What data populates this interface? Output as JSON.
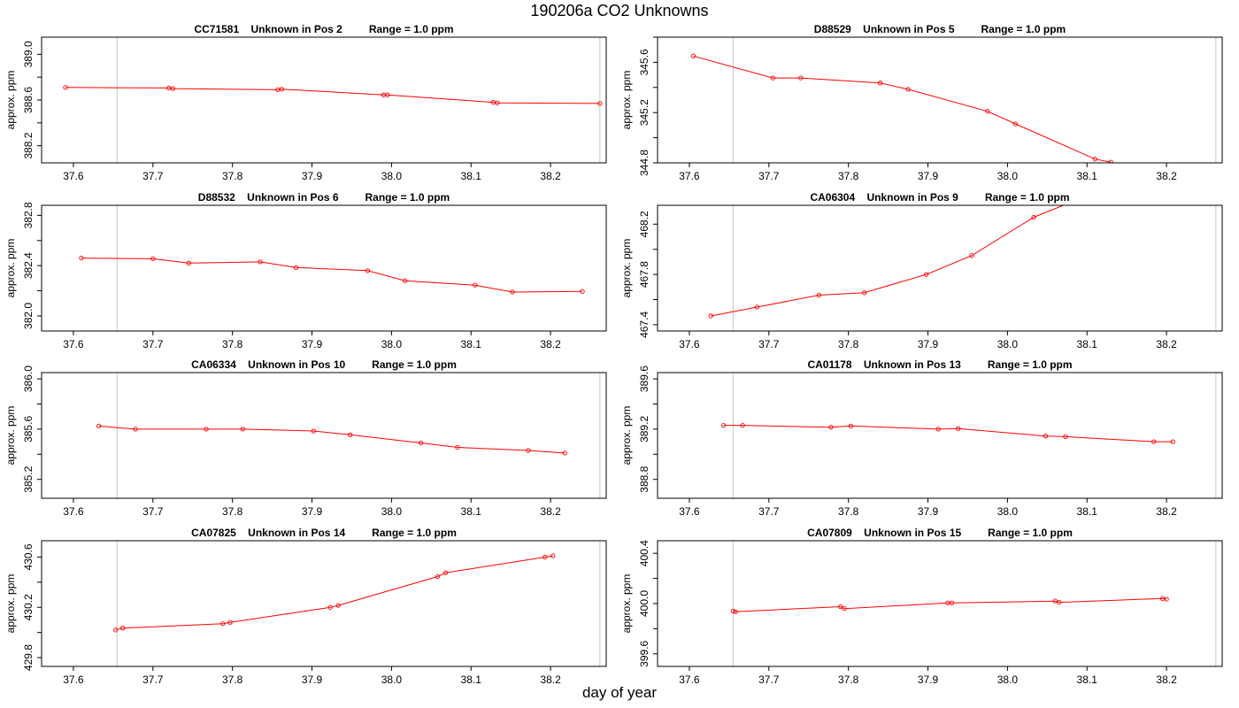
{
  "title": "190206a  CO2 Unknowns",
  "xlabel": "day of year",
  "colors": {
    "series": "#ff0000",
    "marker": "#ff0000",
    "vline": "#c8c8c8",
    "frame": "#000000"
  },
  "chart_data": [
    {
      "type": "line",
      "title": "CC71581    Unknown in Pos 2         Range = 1.0 ppm",
      "xlabel": "",
      "ylabel": "approx. ppm",
      "xlim": [
        37.56,
        38.27
      ],
      "ylim": [
        388.05,
        389.15
      ],
      "xticks": [
        "37.6",
        "37.7",
        "37.8",
        "37.9",
        "38.0",
        "38.1",
        "38.2"
      ],
      "yticks": [
        "388.2",
        "388.6",
        "389.0"
      ],
      "vlines": [
        37.655,
        38.262
      ],
      "x": [
        37.59,
        37.72,
        37.725,
        37.857,
        37.862,
        37.99,
        37.995,
        38.128,
        38.133,
        38.262
      ],
      "y": [
        388.71,
        388.705,
        388.7,
        388.69,
        388.695,
        388.645,
        388.645,
        388.58,
        388.575,
        388.57
      ]
    },
    {
      "type": "line",
      "title": "D88529    Unknown in Pos 5         Range = 1.0 ppm",
      "xlabel": "",
      "ylabel": "approx. ppm",
      "xlim": [
        37.56,
        38.27
      ],
      "ylim": [
        344.8,
        345.8
      ],
      "xticks": [
        "37.6",
        "37.7",
        "37.8",
        "37.9",
        "38.0",
        "38.1",
        "38.2"
      ],
      "yticks": [
        "344.8",
        "345.2",
        "345.6"
      ],
      "vlines": [
        37.655,
        38.262
      ],
      "x": [
        37.605,
        37.705,
        37.74,
        37.84,
        37.875,
        37.975,
        38.01,
        38.11,
        38.13
      ],
      "y": [
        345.65,
        345.475,
        345.475,
        345.435,
        345.385,
        345.21,
        345.11,
        344.83,
        344.805
      ]
    },
    {
      "type": "line",
      "title": "D88532    Unknown in Pos 6         Range = 1.0 ppm",
      "xlabel": "",
      "ylabel": "approx. ppm",
      "xlim": [
        37.56,
        38.27
      ],
      "ylim": [
        381.88,
        382.88
      ],
      "xticks": [
        "37.6",
        "37.7",
        "37.8",
        "37.9",
        "38.0",
        "38.1",
        "38.2"
      ],
      "yticks": [
        "382.0",
        "382.4",
        "382.8"
      ],
      "vlines": [
        37.655
      ],
      "x": [
        37.61,
        37.7,
        37.745,
        37.835,
        37.88,
        37.97,
        38.017,
        38.105,
        38.152,
        38.24
      ],
      "y": [
        382.46,
        382.455,
        382.42,
        382.43,
        382.385,
        382.36,
        382.28,
        382.245,
        382.19,
        382.195
      ]
    },
    {
      "type": "line",
      "title": "CA06304    Unknown in Pos 9         Range = 1.0 ppm",
      "xlabel": "",
      "ylabel": "approx. ppm",
      "xlim": [
        37.56,
        38.27
      ],
      "ylim": [
        467.35,
        468.35
      ],
      "xticks": [
        "37.6",
        "37.7",
        "37.8",
        "37.9",
        "38.0",
        "38.1",
        "38.2"
      ],
      "yticks": [
        "467.4",
        "467.8",
        "468.2"
      ],
      "vlines": [
        37.655,
        38.262
      ],
      "x": [
        37.627,
        37.685,
        37.763,
        37.82,
        37.898,
        37.955,
        38.033,
        38.09
      ],
      "y": [
        467.47,
        467.54,
        467.635,
        467.655,
        467.8,
        467.95,
        468.255,
        468.4
      ]
    },
    {
      "type": "line",
      "title": "CA06334    Unknown in Pos 10         Range = 1.0 ppm",
      "xlabel": "",
      "ylabel": "approx. ppm",
      "xlim": [
        37.56,
        38.27
      ],
      "ylim": [
        385.05,
        386.05
      ],
      "xticks": [
        "37.6",
        "37.7",
        "37.8",
        "37.9",
        "38.0",
        "38.1",
        "38.2"
      ],
      "yticks": [
        "385.2",
        "385.6",
        "386.0"
      ],
      "vlines": [
        37.655,
        38.262
      ],
      "x": [
        37.632,
        37.678,
        37.767,
        37.813,
        37.902,
        37.948,
        38.037,
        38.083,
        38.172,
        38.218
      ],
      "y": [
        385.625,
        385.6,
        385.6,
        385.6,
        385.585,
        385.555,
        385.49,
        385.455,
        385.43,
        385.41
      ]
    },
    {
      "type": "line",
      "title": "CA01178    Unknown in Pos 13         Range = 1.0 ppm",
      "xlabel": "",
      "ylabel": "approx. ppm",
      "xlim": [
        37.56,
        38.27
      ],
      "ylim": [
        388.65,
        389.65
      ],
      "xticks": [
        "37.6",
        "37.7",
        "37.8",
        "37.9",
        "38.0",
        "38.1",
        "38.2"
      ],
      "yticks": [
        "388.8",
        "389.2",
        "389.6"
      ],
      "vlines": [
        37.655,
        38.262
      ],
      "x": [
        37.643,
        37.667,
        37.778,
        37.803,
        37.913,
        37.938,
        38.048,
        38.073,
        38.184,
        38.208
      ],
      "y": [
        389.23,
        389.23,
        389.215,
        389.225,
        389.2,
        389.205,
        389.145,
        389.14,
        389.1,
        389.1
      ]
    },
    {
      "type": "line",
      "title": "CA07825    Unknown in Pos 14         Range = 1.0 ppm",
      "xlabel": "",
      "ylabel": "approx. ppm",
      "xlim": [
        37.56,
        38.27
      ],
      "ylim": [
        429.73,
        430.73
      ],
      "xticks": [
        "37.6",
        "37.7",
        "37.8",
        "37.9",
        "38.0",
        "38.1",
        "38.2"
      ],
      "yticks": [
        "429.8",
        "430.2",
        "430.6"
      ],
      "vlines": [
        37.655,
        38.262
      ],
      "x": [
        37.653,
        37.662,
        37.788,
        37.797,
        37.923,
        37.933,
        38.058,
        38.068,
        38.193,
        38.203
      ],
      "y": [
        430.02,
        430.035,
        430.07,
        430.08,
        430.2,
        430.215,
        430.445,
        430.475,
        430.6,
        430.61
      ]
    },
    {
      "type": "line",
      "title": "CA07809    Unknown in Pos 15         Range = 1.0 ppm",
      "xlabel": "",
      "ylabel": "approx. ppm",
      "xlim": [
        37.56,
        38.27
      ],
      "ylim": [
        399.5,
        400.5
      ],
      "xticks": [
        "37.6",
        "37.7",
        "37.8",
        "37.9",
        "38.0",
        "38.1",
        "38.2"
      ],
      "yticks": [
        "399.6",
        "400.0",
        "400.4"
      ],
      "vlines": [
        37.655,
        38.262
      ],
      "x": [
        37.655,
        37.658,
        37.79,
        37.795,
        37.925,
        37.93,
        38.06,
        38.065,
        38.195,
        38.2
      ],
      "y": [
        399.94,
        399.935,
        399.975,
        399.96,
        400.005,
        400.005,
        400.02,
        400.01,
        400.04,
        400.035
      ]
    }
  ]
}
